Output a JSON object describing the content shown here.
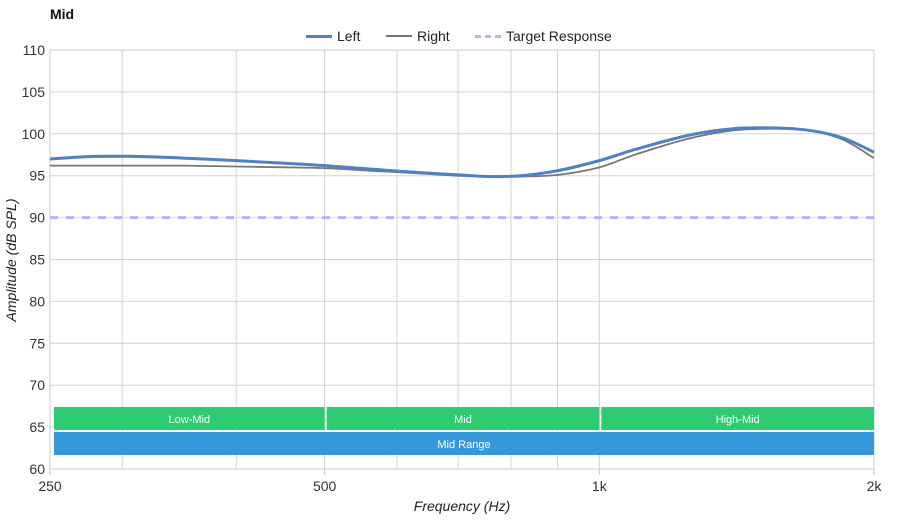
{
  "chart_data": {
    "type": "line",
    "title": "Mid",
    "xlabel": "Frequency (Hz)",
    "ylabel": "Amplitude (dB SPL)",
    "x_scale": "log",
    "xlim": [
      250,
      2000
    ],
    "ylim": [
      60,
      110
    ],
    "x_ticks": [
      {
        "value": 250,
        "label": "250"
      },
      {
        "value": 500,
        "label": "500"
      },
      {
        "value": 1000,
        "label": "1k"
      },
      {
        "value": 2000,
        "label": "2k"
      }
    ],
    "y_ticks": [
      110,
      105,
      100,
      95,
      90,
      85,
      80,
      75,
      70,
      65,
      60
    ],
    "grid": true,
    "legend_position": "top-center",
    "series": [
      {
        "name": "Left",
        "color": "#4f81c4",
        "style": "solid-thick",
        "x": [
          250,
          280,
          310,
          350,
          400,
          450,
          500,
          560,
          630,
          700,
          760,
          820,
          900,
          1000,
          1100,
          1250,
          1400,
          1550,
          1700,
          1850,
          2000
        ],
        "y": [
          97.0,
          97.3,
          97.3,
          97.1,
          96.8,
          96.5,
          96.2,
          95.8,
          95.4,
          95.1,
          94.9,
          95.0,
          95.6,
          96.8,
          98.2,
          99.8,
          100.6,
          100.7,
          100.4,
          99.5,
          97.8
        ]
      },
      {
        "name": "Right",
        "color": "#777777",
        "style": "solid-thin",
        "x": [
          250,
          300,
          350,
          400,
          450,
          500,
          560,
          630,
          700,
          760,
          820,
          900,
          1000,
          1100,
          1250,
          1400,
          1550,
          1700,
          1850,
          2000
        ],
        "y": [
          96.2,
          96.2,
          96.2,
          96.1,
          96.0,
          95.9,
          95.6,
          95.3,
          95.0,
          94.9,
          94.9,
          95.1,
          96.0,
          97.6,
          99.4,
          100.4,
          100.6,
          100.4,
          99.3,
          97.1
        ]
      },
      {
        "name": "Target Response",
        "color": "#a9bdf5",
        "style": "dashed",
        "x": [
          250,
          2000
        ],
        "y": [
          90,
          90
        ]
      }
    ],
    "bands": [
      {
        "label": "Low-Mid",
        "from": 250,
        "to": 500,
        "row": 0,
        "color": "#2ecc71"
      },
      {
        "label": "Mid",
        "from": 500,
        "to": 1000,
        "row": 0,
        "color": "#2ecc71"
      },
      {
        "label": "High-Mid",
        "from": 1000,
        "to": 2000,
        "row": 0,
        "color": "#2ecc71"
      },
      {
        "label": "Mid Range",
        "from": 250,
        "to": 2000,
        "row": 1,
        "color": "#3498db"
      }
    ]
  }
}
